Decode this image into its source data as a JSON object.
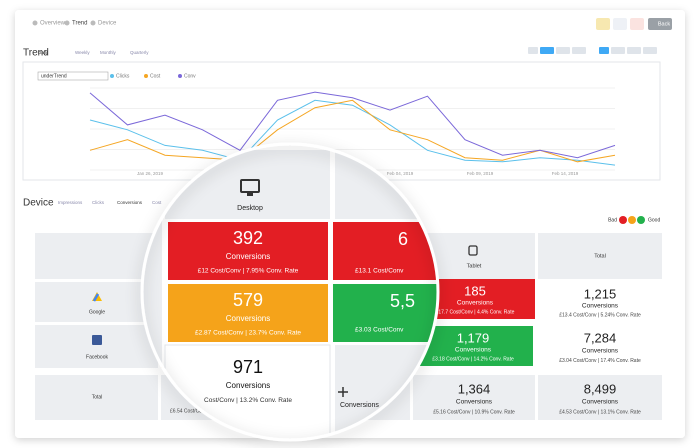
{
  "nav": {
    "breadcrumb": [
      "Overview",
      "Trend",
      "Device"
    ],
    "back": "Back"
  },
  "trend": {
    "title": "Trend",
    "periods": [
      "Daily",
      "Weekly",
      "Monthly",
      "Quarterly"
    ],
    "dropdown": "underTrend",
    "ylim": [
      0,
      100
    ],
    "series": [
      {
        "name": "Clicks",
        "color": "#5bc0eb",
        "values": [
          61,
          49,
          30,
          24,
          12,
          61,
          85,
          79,
          55,
          24,
          12,
          10,
          15,
          12,
          6
        ]
      },
      {
        "name": "Cost",
        "color": "#f5a623",
        "values": [
          24,
          37,
          18,
          15,
          12,
          49,
          76,
          85,
          49,
          37,
          15,
          12,
          24,
          10,
          18
        ]
      },
      {
        "name": "Conv",
        "color": "#7b68d9",
        "values": [
          94,
          55,
          67,
          49,
          24,
          85,
          95,
          88,
          73,
          90,
          37,
          18,
          24,
          15,
          30
        ]
      }
    ],
    "x_labels": [
      "Jan 26, 2019",
      "Feb 04, 2019",
      "Feb 09, 2019",
      "Feb 14, 2019"
    ]
  },
  "device": {
    "title": "Device",
    "metrics": [
      "Impressions",
      "Clicks",
      "Conversions",
      "Cost"
    ],
    "legend": {
      "bad": "Bad",
      "good": "Good"
    },
    "columns": {
      "tablet": "Tablet",
      "total": "Total"
    },
    "rows": [
      {
        "label": "Google",
        "tablet": {
          "value": "185",
          "unit": "Conversions",
          "detail": "£17.7 Cost/Conv | 4.4% Conv. Rate"
        },
        "total": {
          "value": "1,215",
          "unit": "Conversions",
          "detail": "£13.4 Cost/Conv | 5.24% Conv. Rate"
        }
      },
      {
        "label": "Facebook",
        "tablet": {
          "value": "1,179",
          "unit": "Conversions",
          "detail": "£3.18 Cost/Conv | 14.2% Conv. Rate"
        },
        "total": {
          "value": "7,284",
          "unit": "Conversions",
          "detail": "£3.04 Cost/Conv | 17.4% Conv. Rate"
        }
      },
      {
        "label": "Total",
        "partial": "£6.54 Cost/Conv | 13.2",
        "tablet": {
          "value": "1,364",
          "unit": "Conversions",
          "detail": "£5.16 Cost/Conv | 10.9% Conv. Rate"
        },
        "total": {
          "value": "8,499",
          "unit": "Conversions",
          "detail": "£4.53 Cost/Conv | 13.1% Conv. Rate"
        }
      }
    ]
  },
  "magnifier": {
    "header": "Desktop",
    "cells": [
      {
        "value": "392",
        "unit": "Conversions",
        "detail": "£12 Cost/Conv | 7.95% Conv. Rate"
      },
      {
        "value": "579",
        "unit": "Conversions",
        "detail": "£2.87 Cost/Conv | 23.7% Conv. Rate"
      },
      {
        "value": "971",
        "unit": "Conversions",
        "detail": "Cost/Conv | 13.2% Conv. Rate"
      }
    ],
    "mobile": [
      {
        "value": "6",
        "detail": "£13.1 Cost/Conv"
      },
      {
        "value": "5,5",
        "detail": "£3.03 Cost/Conv"
      },
      {
        "unit": "Conversions"
      }
    ]
  }
}
